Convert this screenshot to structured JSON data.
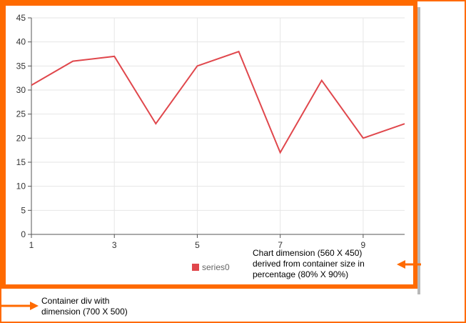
{
  "chart_data": {
    "type": "line",
    "x": [
      1,
      2,
      3,
      4,
      5,
      6,
      7,
      8,
      9,
      10
    ],
    "series": [
      {
        "name": "series0",
        "values": [
          31,
          36,
          37,
          23,
          35,
          38,
          17,
          32,
          20,
          23
        ],
        "color": "#e0474c"
      }
    ],
    "x_ticks": [
      "1",
      "3",
      "5",
      "7",
      "9"
    ],
    "y_ticks": [
      "0",
      "5",
      "10",
      "15",
      "20",
      "25",
      "30",
      "35",
      "40",
      "45"
    ],
    "xlim": [
      1,
      10
    ],
    "ylim": [
      0,
      45
    ],
    "grid": true,
    "legend_position": "bottom"
  },
  "annotations": {
    "chart_note": "Chart dimension (560 X 450)\nderived from container size in\npercentage (80% X 90%)",
    "container_note": "Container div with\ndimension (700 X 500)"
  },
  "colors": {
    "frame": "#ff6a00",
    "arrow": "#ff6a00",
    "grid": "#e6e6e6",
    "axis": "#555555"
  }
}
